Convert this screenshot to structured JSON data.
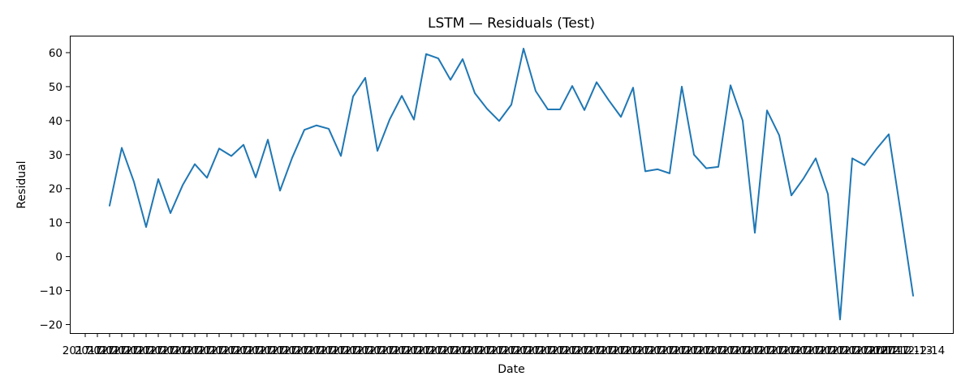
{
  "chart_data": {
    "type": "line",
    "title": "LSTM — Residuals (Test)",
    "xlabel": "Date",
    "ylabel": "Residual",
    "ylim": [
      -22.5,
      65
    ],
    "y_ticks": [
      -20,
      -10,
      0,
      10,
      20,
      30,
      40,
      50,
      60
    ],
    "grid": false,
    "legend": "none",
    "color": "#1f77b4",
    "x_tick_labels": [
      "2017-12",
      "2017-12",
      "2017-12",
      "2017-12",
      "2017-12",
      "2017-12",
      "2017-12",
      "2017-12",
      "2017-12",
      "2017-12",
      "2017-12",
      "2017-12",
      "2017-12",
      "2017-12",
      "2017-12",
      "2017-12",
      "2017-12",
      "2017-12",
      "2017-12",
      "2017-12",
      "2017-12",
      "2017-12",
      "2017-12",
      "2017-12",
      "2017-12",
      "2017-12",
      "2017-12",
      "2017-12",
      "2017-12",
      "2017-12",
      "2017-12",
      "2017-12",
      "2017-12",
      "2017-12",
      "2017-12",
      "2017-12",
      "2017-12",
      "2017-12",
      "2017-12",
      "2017-12",
      "2017-12",
      "2017-12",
      "2017-12",
      "2017-12",
      "2017-12",
      "2017-12",
      "2017-12",
      "2017-12",
      "2017-12",
      "2017-12",
      "2017-12",
      "2017-12",
      "2017-12",
      "2017-12",
      "2017-12",
      "2017-12",
      "2017-12",
      "2017-12",
      "2017-12",
      "2017-12",
      "2017-12",
      "2017-12",
      "2017-12",
      "2017-12",
      "2017-12",
      "2017-12",
      "2017-12",
      "2017-12-13",
      "2017-12-14"
    ],
    "series": [
      {
        "values": [
          15,
          32,
          22,
          8.7,
          22.8,
          12.8,
          21,
          27.2,
          23.2,
          31.8,
          29.6,
          32.9,
          23.3,
          34.4,
          19.4,
          29.1,
          37.3,
          38.6,
          37.6,
          29.6,
          47.1,
          52.6,
          31.1,
          40.3,
          47.3,
          40.3,
          59.6,
          58.3,
          52,
          58.1,
          48.1,
          43.5,
          39.9,
          44.7,
          61.2,
          48.7,
          43.3,
          43.3,
          50.2,
          43.1,
          51.3,
          46,
          41.1,
          49.7,
          25.1,
          25.7,
          24.5,
          50,
          30,
          26,
          26.4,
          50.4,
          40,
          7,
          43,
          35.7,
          18,
          23,
          28.9,
          18.4,
          -18.5,
          28.9,
          26.9,
          31.7,
          36,
          12.5,
          -11.5
        ]
      }
    ]
  }
}
